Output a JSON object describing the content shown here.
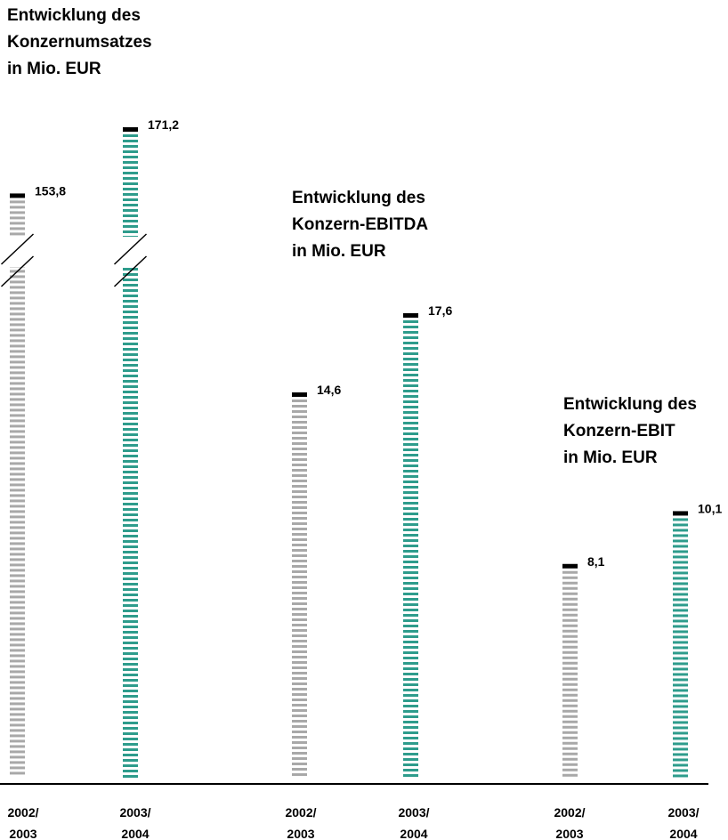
{
  "colors": {
    "previous_year": "#a8a8a8",
    "current_year": "#2e9c8c",
    "cap": "#000000",
    "axis": "#000000",
    "text": "#000000"
  },
  "chart_data": [
    {
      "type": "bar",
      "title_lines": [
        "Entwicklung des",
        "Konzernumsatzes",
        "in Mio. EUR"
      ],
      "categories": [
        [
          "2002/",
          "2003"
        ],
        [
          "2003/",
          "2004"
        ]
      ],
      "values": [
        153.8,
        171.2
      ],
      "value_labels": [
        "153,8",
        "171,2"
      ],
      "axis_break": true,
      "grid": false
    },
    {
      "type": "bar",
      "title_lines": [
        "Entwicklung des",
        "Konzern-EBITDA",
        "in Mio. EUR"
      ],
      "categories": [
        [
          "2002/",
          "2003"
        ],
        [
          "2003/",
          "2004"
        ]
      ],
      "values": [
        14.6,
        17.6
      ],
      "value_labels": [
        "14,6",
        "17,6"
      ],
      "axis_break": false,
      "grid": false
    },
    {
      "type": "bar",
      "title_lines": [
        "Entwicklung des",
        "Konzern-EBIT",
        "in Mio. EUR"
      ],
      "categories": [
        [
          "2002/",
          "2003"
        ],
        [
          "2003/",
          "2004"
        ]
      ],
      "values": [
        8.1,
        10.1
      ],
      "value_labels": [
        "8,1",
        "10,1"
      ],
      "axis_break": false,
      "grid": false
    }
  ]
}
